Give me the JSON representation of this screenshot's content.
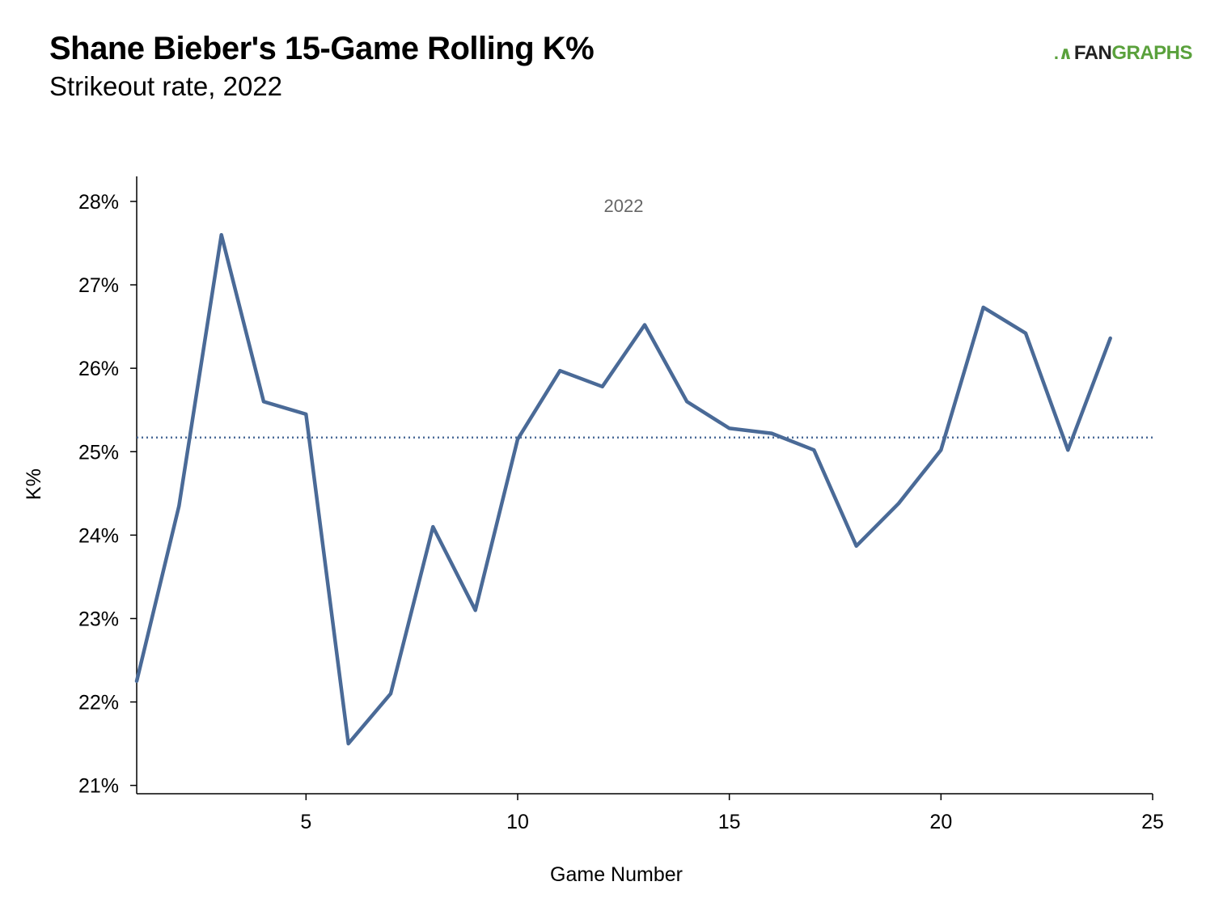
{
  "header": {
    "title": "Shane Bieber's 15-Game Rolling K%",
    "subtitle": "Strikeout rate, 2022"
  },
  "logo": {
    "mark": ".∧",
    "word_fan": "FAN",
    "word_graphs": "GRAPHS"
  },
  "chart_data": {
    "type": "line",
    "title": "Shane Bieber's 15-Game Rolling K%",
    "subtitle": "Strikeout rate, 2022",
    "xlabel": "Game Number",
    "ylabel": "K%",
    "xlim": [
      1,
      25
    ],
    "ylim": [
      20.9,
      28.3
    ],
    "x_ticks": [
      5,
      10,
      15,
      20,
      25
    ],
    "y_ticks": [
      21,
      22,
      23,
      24,
      25,
      26,
      27,
      28
    ],
    "y_tick_suffix": "%",
    "grid": false,
    "annotation": "2022",
    "reference_line": {
      "y": 25.17,
      "style": "dotted"
    },
    "line_color": "#4a6a97",
    "series": [
      {
        "x": [
          1,
          2,
          3,
          4,
          5,
          6,
          7,
          8,
          9,
          10,
          11,
          12,
          13,
          14,
          15,
          16,
          17,
          18,
          19,
          20,
          21,
          22,
          23,
          24
        ],
        "values": [
          22.25,
          24.35,
          27.6,
          25.6,
          25.45,
          21.5,
          22.1,
          24.1,
          23.1,
          25.15,
          25.97,
          25.78,
          26.52,
          25.6,
          25.28,
          25.22,
          25.02,
          23.87,
          24.38,
          25.02,
          26.73,
          26.42,
          25.02,
          26.36
        ]
      }
    ]
  }
}
